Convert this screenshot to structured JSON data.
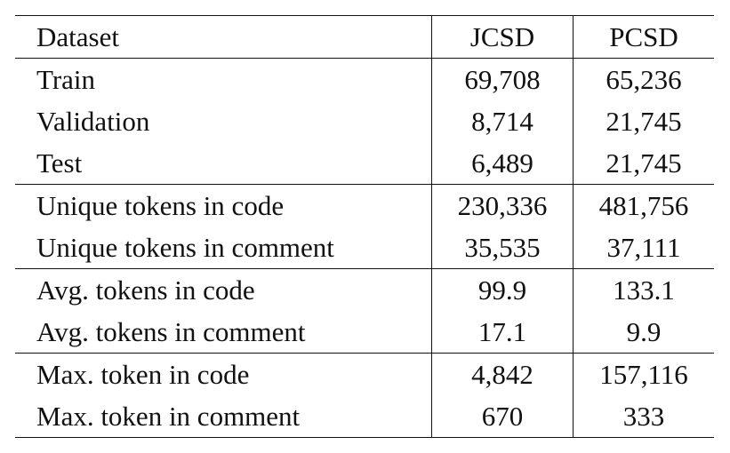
{
  "table": {
    "headers": [
      "Dataset",
      "JCSD",
      "PCSD"
    ],
    "groups": [
      [
        [
          "Train",
          "69,708",
          "65,236"
        ],
        [
          "Validation",
          "8,714",
          "21,745"
        ],
        [
          "Test",
          "6,489",
          "21,745"
        ]
      ],
      [
        [
          "Unique tokens in code",
          "230,336",
          "481,756"
        ],
        [
          "Unique tokens in comment",
          "35,535",
          "37,111"
        ]
      ],
      [
        [
          "Avg. tokens in code",
          "99.9",
          "133.1"
        ],
        [
          "Avg. tokens in comment",
          "17.1",
          "9.9"
        ]
      ],
      [
        [
          "Max. token in code",
          "4,842",
          "157,116"
        ],
        [
          "Max. token in comment",
          "670",
          "333"
        ]
      ]
    ]
  }
}
